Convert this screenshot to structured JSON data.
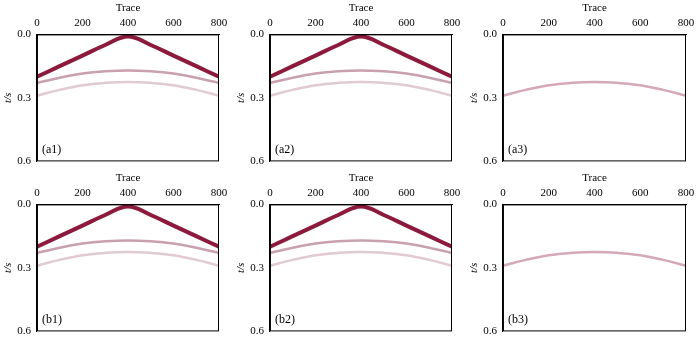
{
  "chart_data": [
    {
      "type": "line",
      "title": "(a1)",
      "x_label": "Trace",
      "y_label": "t/s",
      "x": [
        0,
        100,
        200,
        300,
        400,
        500,
        600,
        700,
        800
      ],
      "series": [
        {
          "color": "#8b1a3c",
          "values": [
            0.2,
            0.15,
            0.1,
            0.05,
            0.01,
            0.05,
            0.1,
            0.15,
            0.2
          ]
        },
        {
          "color": "#c9a0b0",
          "values": [
            0.23,
            0.205,
            0.185,
            0.174,
            0.17,
            0.174,
            0.185,
            0.205,
            0.23
          ]
        },
        {
          "color": "#e2cad3",
          "values": [
            0.29,
            0.262,
            0.24,
            0.229,
            0.225,
            0.229,
            0.24,
            0.262,
            0.29
          ]
        }
      ],
      "xlim": [
        0,
        800
      ],
      "xticks": [
        0,
        200,
        400,
        600,
        800
      ],
      "ylim": [
        0,
        0.6
      ],
      "yticks": [
        {
          "value": 0,
          "label": "0.0"
        },
        {
          "value": 0.3,
          "label": "0.3"
        },
        {
          "value": 0.6,
          "label": "0.6"
        }
      ],
      "grid": false
    },
    {
      "type": "line",
      "title": "(a2)",
      "x_label": "Trace",
      "y_label": "t/s",
      "x": [
        0,
        100,
        200,
        300,
        400,
        500,
        600,
        700,
        800
      ],
      "series": [
        {
          "color": "#8b1a3c",
          "values": [
            0.2,
            0.15,
            0.1,
            0.05,
            0.01,
            0.05,
            0.1,
            0.15,
            0.2
          ]
        },
        {
          "color": "#c9a0b0",
          "values": [
            0.23,
            0.205,
            0.185,
            0.174,
            0.17,
            0.174,
            0.185,
            0.205,
            0.23
          ]
        },
        {
          "color": "#e2cad3",
          "values": [
            0.29,
            0.262,
            0.24,
            0.229,
            0.225,
            0.229,
            0.24,
            0.262,
            0.29
          ]
        }
      ],
      "xlim": [
        0,
        800
      ],
      "xticks": [
        0,
        200,
        400,
        600,
        800
      ],
      "ylim": [
        0,
        0.6
      ],
      "yticks": [
        {
          "value": 0,
          "label": "0.0"
        },
        {
          "value": 0.3,
          "label": "0.3"
        },
        {
          "value": 0.6,
          "label": "0.6"
        }
      ],
      "grid": false
    },
    {
      "type": "line",
      "title": "(a3)",
      "x_label": "Trace",
      "y_label": "t/s",
      "x": [
        0,
        100,
        200,
        300,
        400,
        500,
        600,
        700,
        800
      ],
      "series": [
        {
          "color": "#d4a8b8",
          "values": [
            0.29,
            0.262,
            0.24,
            0.229,
            0.225,
            0.229,
            0.24,
            0.262,
            0.29
          ]
        }
      ],
      "xlim": [
        0,
        800
      ],
      "xticks": [
        0,
        200,
        400,
        600,
        800
      ],
      "ylim": [
        0,
        0.6
      ],
      "yticks": [
        {
          "value": 0,
          "label": "0.0"
        },
        {
          "value": 0.3,
          "label": "0.3"
        },
        {
          "value": 0.6,
          "label": "0.6"
        }
      ],
      "grid": false
    },
    {
      "type": "line",
      "title": "(b1)",
      "x_label": "Trace",
      "y_label": "t/s",
      "x": [
        0,
        100,
        200,
        300,
        400,
        500,
        600,
        700,
        800
      ],
      "series": [
        {
          "color": "#8b1a3c",
          "values": [
            0.2,
            0.15,
            0.1,
            0.05,
            0.01,
            0.05,
            0.1,
            0.15,
            0.2
          ]
        },
        {
          "color": "#c9a0b0",
          "values": [
            0.23,
            0.205,
            0.185,
            0.174,
            0.17,
            0.174,
            0.185,
            0.205,
            0.23
          ]
        },
        {
          "color": "#e2cad3",
          "values": [
            0.29,
            0.262,
            0.24,
            0.229,
            0.225,
            0.229,
            0.24,
            0.262,
            0.29
          ]
        }
      ],
      "xlim": [
        0,
        800
      ],
      "xticks": [
        0,
        200,
        400,
        600,
        800
      ],
      "ylim": [
        0,
        0.6
      ],
      "yticks": [
        {
          "value": 0,
          "label": "0.0"
        },
        {
          "value": 0.3,
          "label": "0.3"
        },
        {
          "value": 0.6,
          "label": "0.6"
        }
      ],
      "grid": false
    },
    {
      "type": "line",
      "title": "(b2)",
      "x_label": "Trace",
      "y_label": "t/s",
      "x": [
        0,
        100,
        200,
        300,
        400,
        500,
        600,
        700,
        800
      ],
      "series": [
        {
          "color": "#8b1a3c",
          "values": [
            0.2,
            0.15,
            0.1,
            0.05,
            0.01,
            0.05,
            0.1,
            0.15,
            0.2
          ]
        },
        {
          "color": "#c9a0b0",
          "values": [
            0.23,
            0.205,
            0.185,
            0.174,
            0.17,
            0.174,
            0.185,
            0.205,
            0.23
          ]
        },
        {
          "color": "#e2cad3",
          "values": [
            0.29,
            0.262,
            0.24,
            0.229,
            0.225,
            0.229,
            0.24,
            0.262,
            0.29
          ]
        }
      ],
      "xlim": [
        0,
        800
      ],
      "xticks": [
        0,
        200,
        400,
        600,
        800
      ],
      "ylim": [
        0,
        0.6
      ],
      "yticks": [
        {
          "value": 0,
          "label": "0.0"
        },
        {
          "value": 0.3,
          "label": "0.3"
        },
        {
          "value": 0.6,
          "label": "0.6"
        }
      ],
      "grid": false
    },
    {
      "type": "line",
      "title": "(b3)",
      "x_label": "Trace",
      "y_label": "t/s",
      "x": [
        0,
        100,
        200,
        300,
        400,
        500,
        600,
        700,
        800
      ],
      "series": [
        {
          "color": "#d4a8b8",
          "values": [
            0.29,
            0.262,
            0.24,
            0.229,
            0.225,
            0.229,
            0.24,
            0.262,
            0.29
          ]
        }
      ],
      "xlim": [
        0,
        800
      ],
      "xticks": [
        0,
        200,
        400,
        600,
        800
      ],
      "ylim": [
        0,
        0.6
      ],
      "yticks": [
        {
          "value": 0,
          "label": "0.0"
        },
        {
          "value": 0.3,
          "label": "0.3"
        },
        {
          "value": 0.6,
          "label": "0.6"
        }
      ],
      "grid": false
    }
  ]
}
